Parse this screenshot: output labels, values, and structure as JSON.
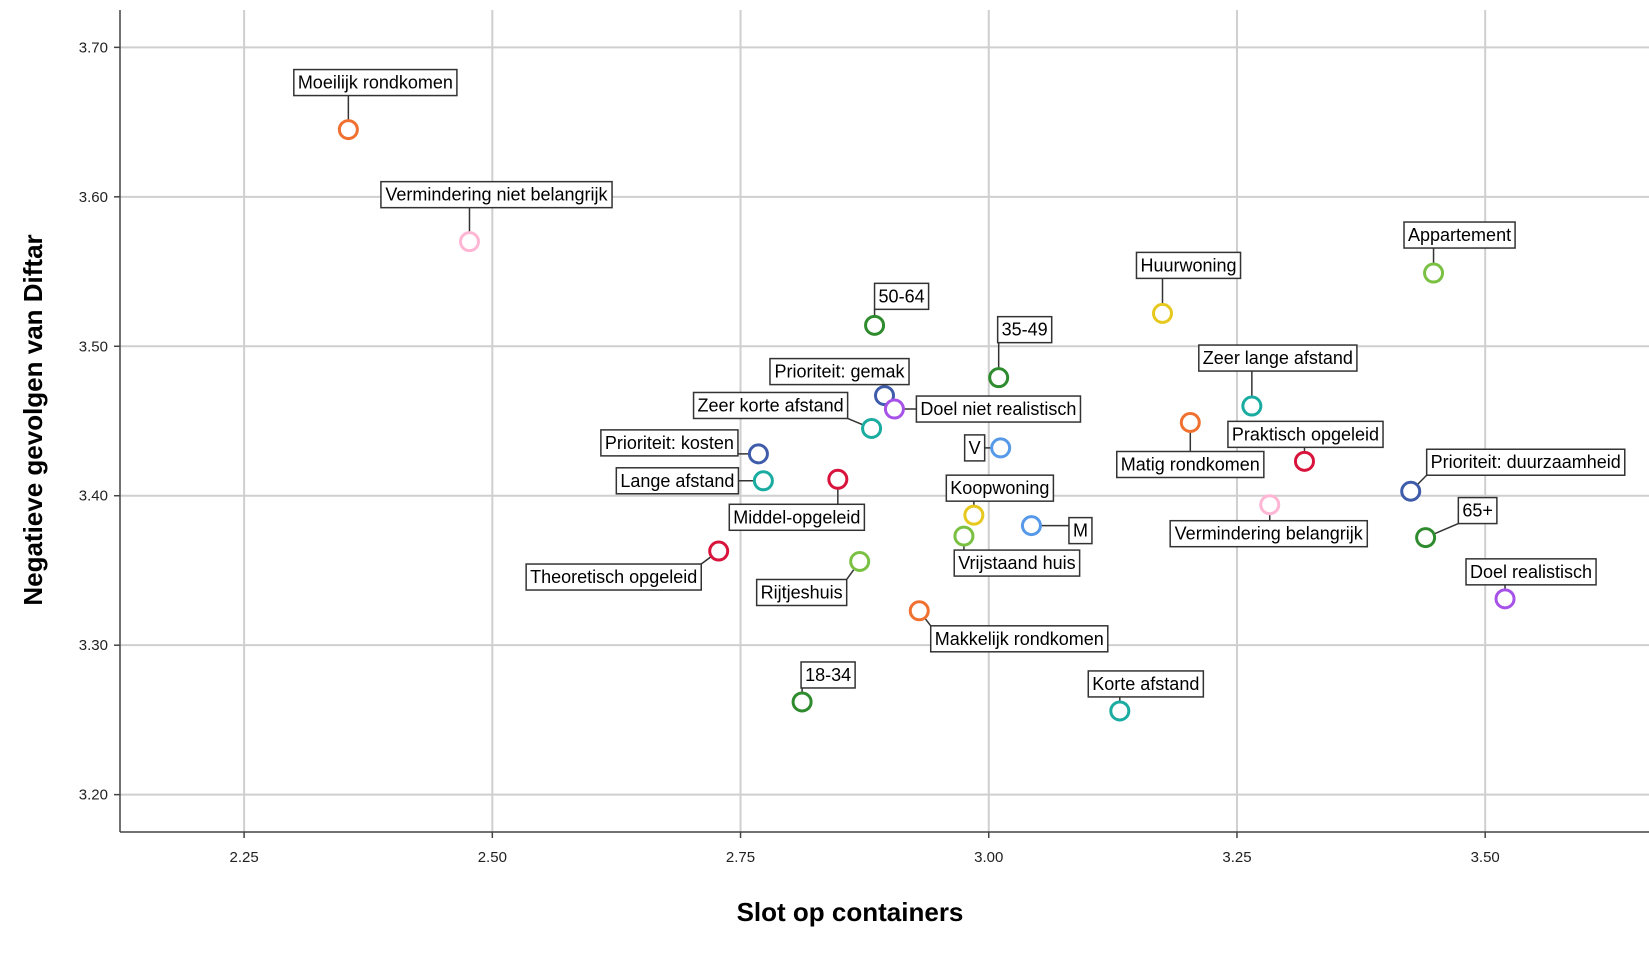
{
  "chart_data": {
    "type": "scatter",
    "title": "",
    "xlabel": "Slot op containers",
    "ylabel": "Negatieve gevolgen van Diftar",
    "xlim": [
      2.125,
      3.665
    ],
    "ylim": [
      3.175,
      3.725
    ],
    "xticks": [
      2.25,
      2.5,
      2.75,
      3.0,
      3.25,
      3.5
    ],
    "yticks": [
      3.2,
      3.3,
      3.4,
      3.5,
      3.6,
      3.7
    ],
    "xtick_labels": [
      "2.25",
      "2.50",
      "2.75",
      "3.00",
      "3.25",
      "3.50"
    ],
    "ytick_labels": [
      "3.20",
      "3.30",
      "3.40",
      "3.50",
      "3.60",
      "3.70"
    ],
    "grid": true,
    "legend": "none",
    "points": [
      {
        "label": "Moeilijk rondkomen",
        "x": 2.355,
        "y": 3.645,
        "color": "#f07030"
      },
      {
        "label": "Vermindering niet belangrijk",
        "x": 2.477,
        "y": 3.57,
        "color": "#ffb6d5"
      },
      {
        "label": "50-64",
        "x": 2.885,
        "y": 3.514,
        "color": "#2e8b2e"
      },
      {
        "label": "35-49",
        "x": 3.01,
        "y": 3.479,
        "color": "#2e8b2e"
      },
      {
        "label": "Prioriteit: gemak",
        "x": 2.895,
        "y": 3.467,
        "color": "#3f5cab"
      },
      {
        "label": "Doel niet realistisch",
        "x": 2.905,
        "y": 3.458,
        "color": "#a652e8"
      },
      {
        "label": "Zeer korte afstand",
        "x": 2.882,
        "y": 3.445,
        "color": "#1aaca0"
      },
      {
        "label": "Prioriteit: kosten",
        "x": 2.768,
        "y": 3.428,
        "color": "#3f5cab"
      },
      {
        "label": "V",
        "x": 3.012,
        "y": 3.432,
        "color": "#5599e8"
      },
      {
        "label": "Lange afstand",
        "x": 2.773,
        "y": 3.41,
        "color": "#1aaca0"
      },
      {
        "label": "Middel-opgeleid",
        "x": 2.848,
        "y": 3.411,
        "color": "#d8143c"
      },
      {
        "label": "Koopwoning",
        "x": 2.985,
        "y": 3.387,
        "color": "#e6c81e"
      },
      {
        "label": "M",
        "x": 3.043,
        "y": 3.38,
        "color": "#5599e8"
      },
      {
        "label": "Vrijstaand huis",
        "x": 2.975,
        "y": 3.373,
        "color": "#7ac143"
      },
      {
        "label": "Theoretisch opgeleid",
        "x": 2.728,
        "y": 3.363,
        "color": "#d8143c"
      },
      {
        "label": "Rijtjeshuis",
        "x": 2.87,
        "y": 3.356,
        "color": "#7ac143"
      },
      {
        "label": "Makkelijk rondkomen",
        "x": 2.93,
        "y": 3.323,
        "color": "#f07030"
      },
      {
        "label": "18-34",
        "x": 2.812,
        "y": 3.262,
        "color": "#2e8b2e"
      },
      {
        "label": "Korte afstand",
        "x": 3.132,
        "y": 3.256,
        "color": "#1aaca0"
      },
      {
        "label": "Huurwoning",
        "x": 3.175,
        "y": 3.522,
        "color": "#e6c81e"
      },
      {
        "label": "Zeer lange afstand",
        "x": 3.265,
        "y": 3.46,
        "color": "#1aaca0"
      },
      {
        "label": "Matig rondkomen",
        "x": 3.203,
        "y": 3.449,
        "color": "#f07030"
      },
      {
        "label": "Praktisch opgeleid",
        "x": 3.318,
        "y": 3.423,
        "color": "#d8143c"
      },
      {
        "label": "Vermindering belangrijk",
        "x": 3.283,
        "y": 3.394,
        "color": "#ffb6d5"
      },
      {
        "label": "Appartement",
        "x": 3.448,
        "y": 3.549,
        "color": "#7ac143"
      },
      {
        "label": "Prioriteit: duurzaamheid",
        "x": 3.425,
        "y": 3.403,
        "color": "#3f5cab"
      },
      {
        "label": "65+",
        "x": 3.44,
        "y": 3.372,
        "color": "#2e8b2e"
      },
      {
        "label": "Doel realistisch",
        "x": 3.52,
        "y": 3.331,
        "color": "#a652e8"
      }
    ]
  }
}
